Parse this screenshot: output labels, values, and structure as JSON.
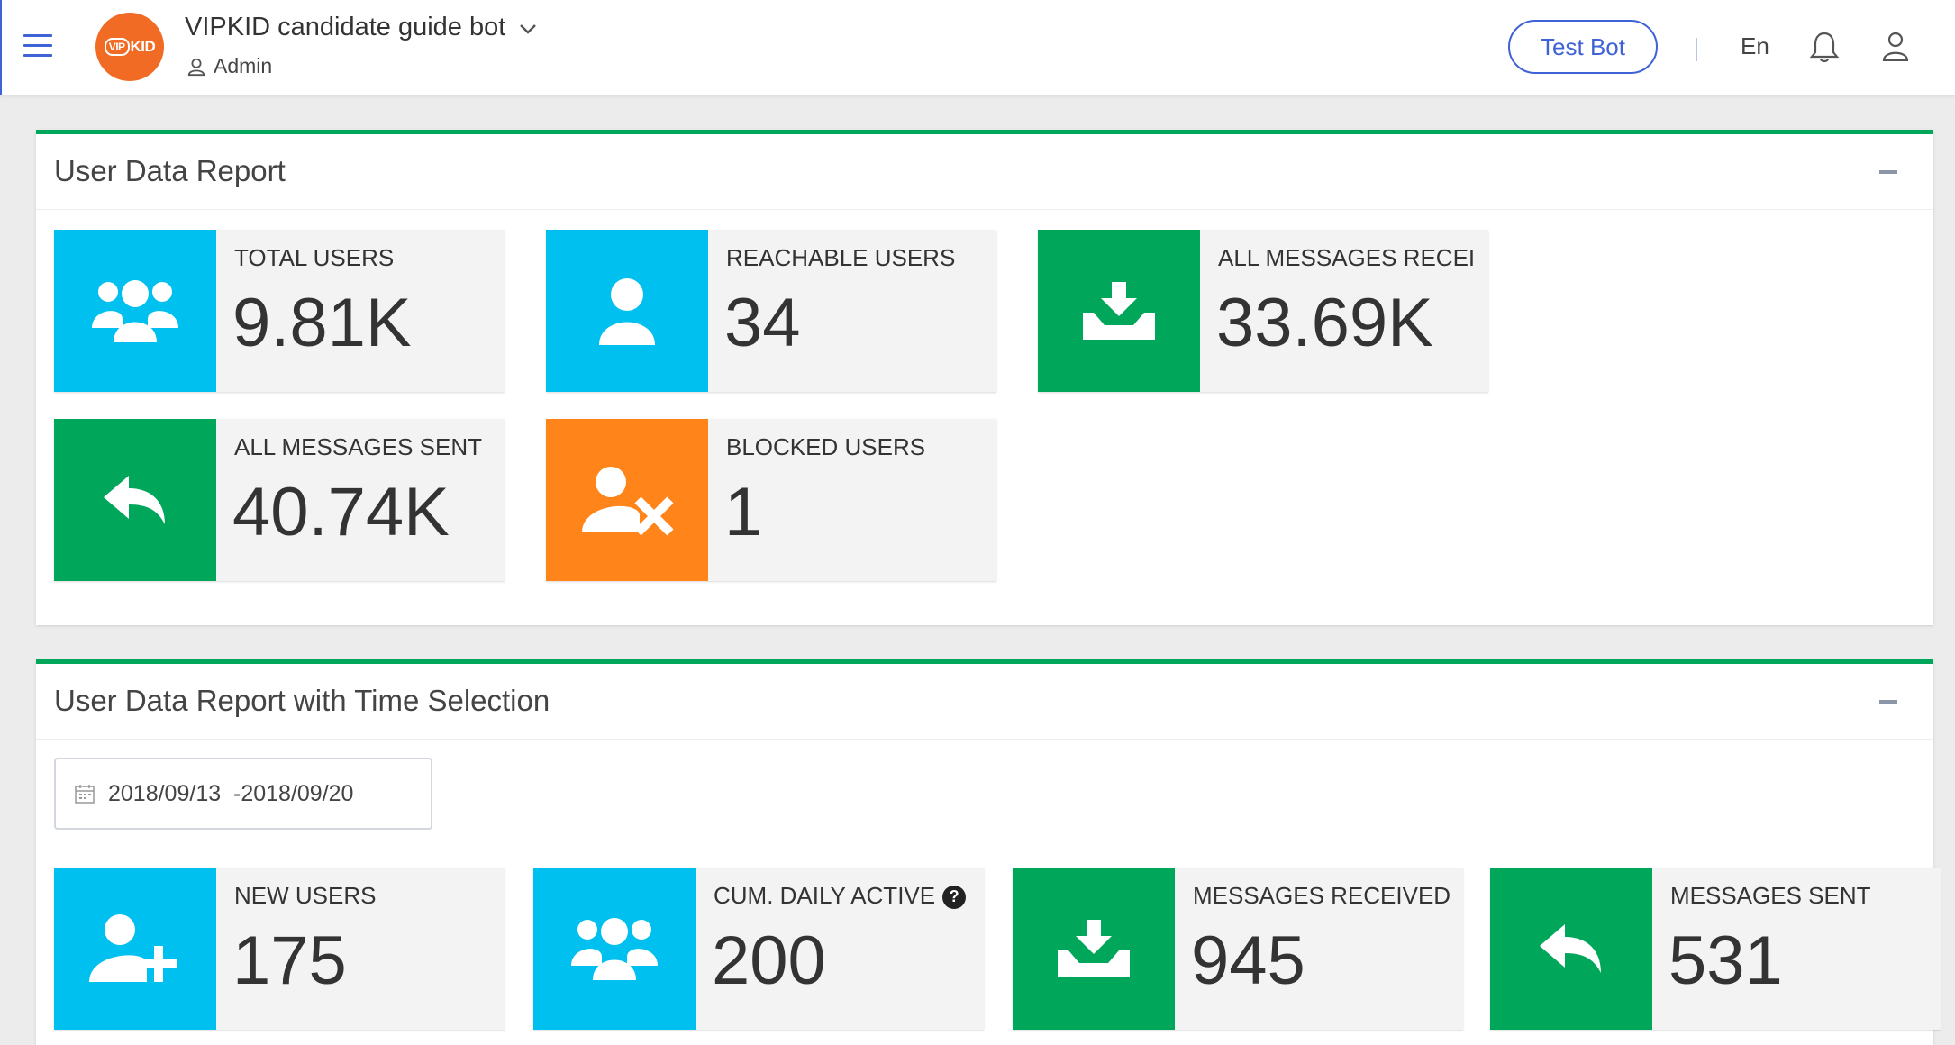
{
  "header": {
    "bot_name": "VIPKID candidate guide bot",
    "role": "Admin",
    "logo_text": "VIP KID",
    "test_bot_label": "Test Bot",
    "language": "En"
  },
  "colors": {
    "primary": "#3f62d6",
    "accent_green": "#00a65a",
    "cyan": "#00c0ef",
    "orange": "#ff851b",
    "logo_orange": "#f26b24"
  },
  "panel1": {
    "title": "User Data Report",
    "boxes": [
      {
        "label": "TOTAL USERS",
        "value": "9.81K",
        "icon": "users-group-icon",
        "color": "cyan"
      },
      {
        "label": "REACHABLE USERS",
        "value": "34",
        "icon": "user-icon",
        "color": "cyan"
      },
      {
        "label": "ALL MESSAGES RECEIVED",
        "value": "33.69K",
        "icon": "inbox-download-icon",
        "color": "green"
      },
      {
        "label": "ALL MESSAGES SENT",
        "value": "40.74K",
        "icon": "reply-icon",
        "color": "green"
      },
      {
        "label": "BLOCKED USERS",
        "value": "1",
        "icon": "user-blocked-icon",
        "color": "orange"
      }
    ]
  },
  "panel2": {
    "title": "User Data Report with Time Selection",
    "date_range": "2018/09/13  -2018/09/20",
    "boxes": [
      {
        "label": "NEW USERS",
        "value": "175",
        "icon": "user-add-icon",
        "color": "cyan"
      },
      {
        "label": "CUM. DAILY ACTIVE",
        "value": "200",
        "icon": "users-group-icon",
        "color": "cyan"
      },
      {
        "label": "MESSAGES RECEIVED",
        "value": "945",
        "icon": "inbox-download-icon",
        "color": "green"
      },
      {
        "label": "MESSAGES SENT",
        "value": "531",
        "icon": "reply-icon",
        "color": "green"
      }
    ]
  }
}
